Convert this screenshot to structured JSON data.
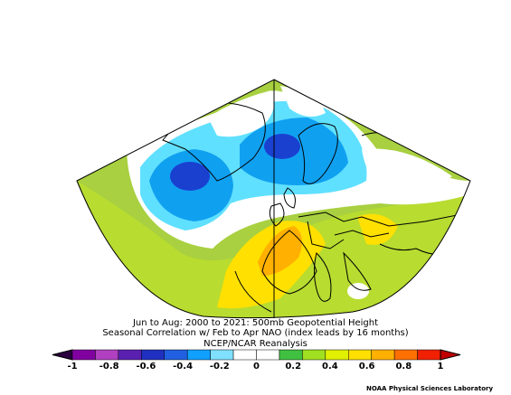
{
  "title_lines": [
    "Jun to Aug: 2000 to 2021: 500mb Geopotential Height",
    "Seasonal Correlation w/ Feb to Apr NAO (index leads by 16 months)",
    "NCEP/NCAR Reanalysis"
  ],
  "colorbar": {
    "ticks": [
      "-1",
      "-0.8",
      "-0.6",
      "-0.4",
      "-0.2",
      "0",
      "0.2",
      "0.4",
      "0.6",
      "0.8",
      "1"
    ],
    "colors": [
      "#8000a0",
      "#b040c0",
      "#5a20b0",
      "#2030c0",
      "#2060e0",
      "#10a0ff",
      "#80e0ff",
      "#ffffff",
      "#ffffff",
      "#40c040",
      "#a0e020",
      "#e0f000",
      "#ffe000",
      "#ffb000",
      "#ff7000",
      "#f02000"
    ]
  },
  "map_colors": {
    "land_outline": "#000000",
    "ocean_base": "#a8d040",
    "negative_strong": "#1a40d0",
    "negative_mid": "#10a0f0",
    "negative_weak": "#60e0ff",
    "neutral": "#ffffff",
    "positive_weak": "#c0e020",
    "positive_mid": "#ffe000",
    "positive_strong": "#ffb000"
  },
  "credit": "NOAA Physical Sciences Laboratory"
}
